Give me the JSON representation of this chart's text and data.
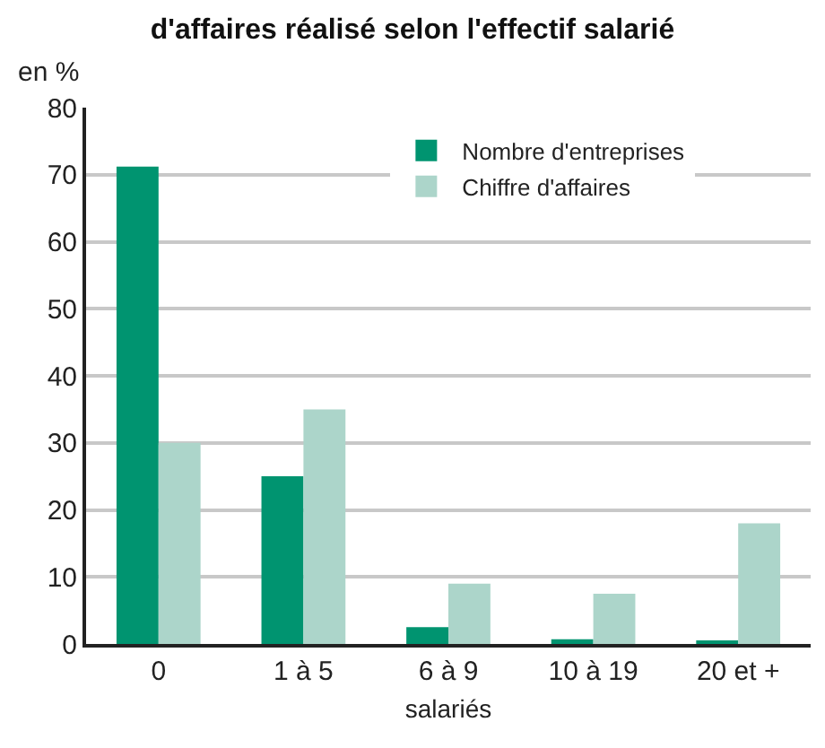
{
  "chart_data": {
    "type": "bar",
    "title": "d'affaires réalisé selon l'effectif salarié",
    "ylabel": "en %",
    "xlabel": "salariés",
    "categories": [
      "0",
      "1 à 5",
      "6 à 9",
      "10 à 19",
      "20 et +"
    ],
    "series": [
      {
        "name": "Nombre d'entreprises",
        "color": "#009470",
        "values": [
          71.2,
          25,
          2.5,
          0.7,
          0.5
        ]
      },
      {
        "name": "Chiffre d'affaires",
        "color": "#acd5ca",
        "values": [
          30,
          35,
          9,
          7.5,
          18
        ]
      }
    ],
    "ylim": [
      0,
      80
    ],
    "yticks": [
      0,
      10,
      20,
      30,
      40,
      50,
      60,
      70,
      80
    ],
    "grid": "y",
    "legend": "top right"
  }
}
